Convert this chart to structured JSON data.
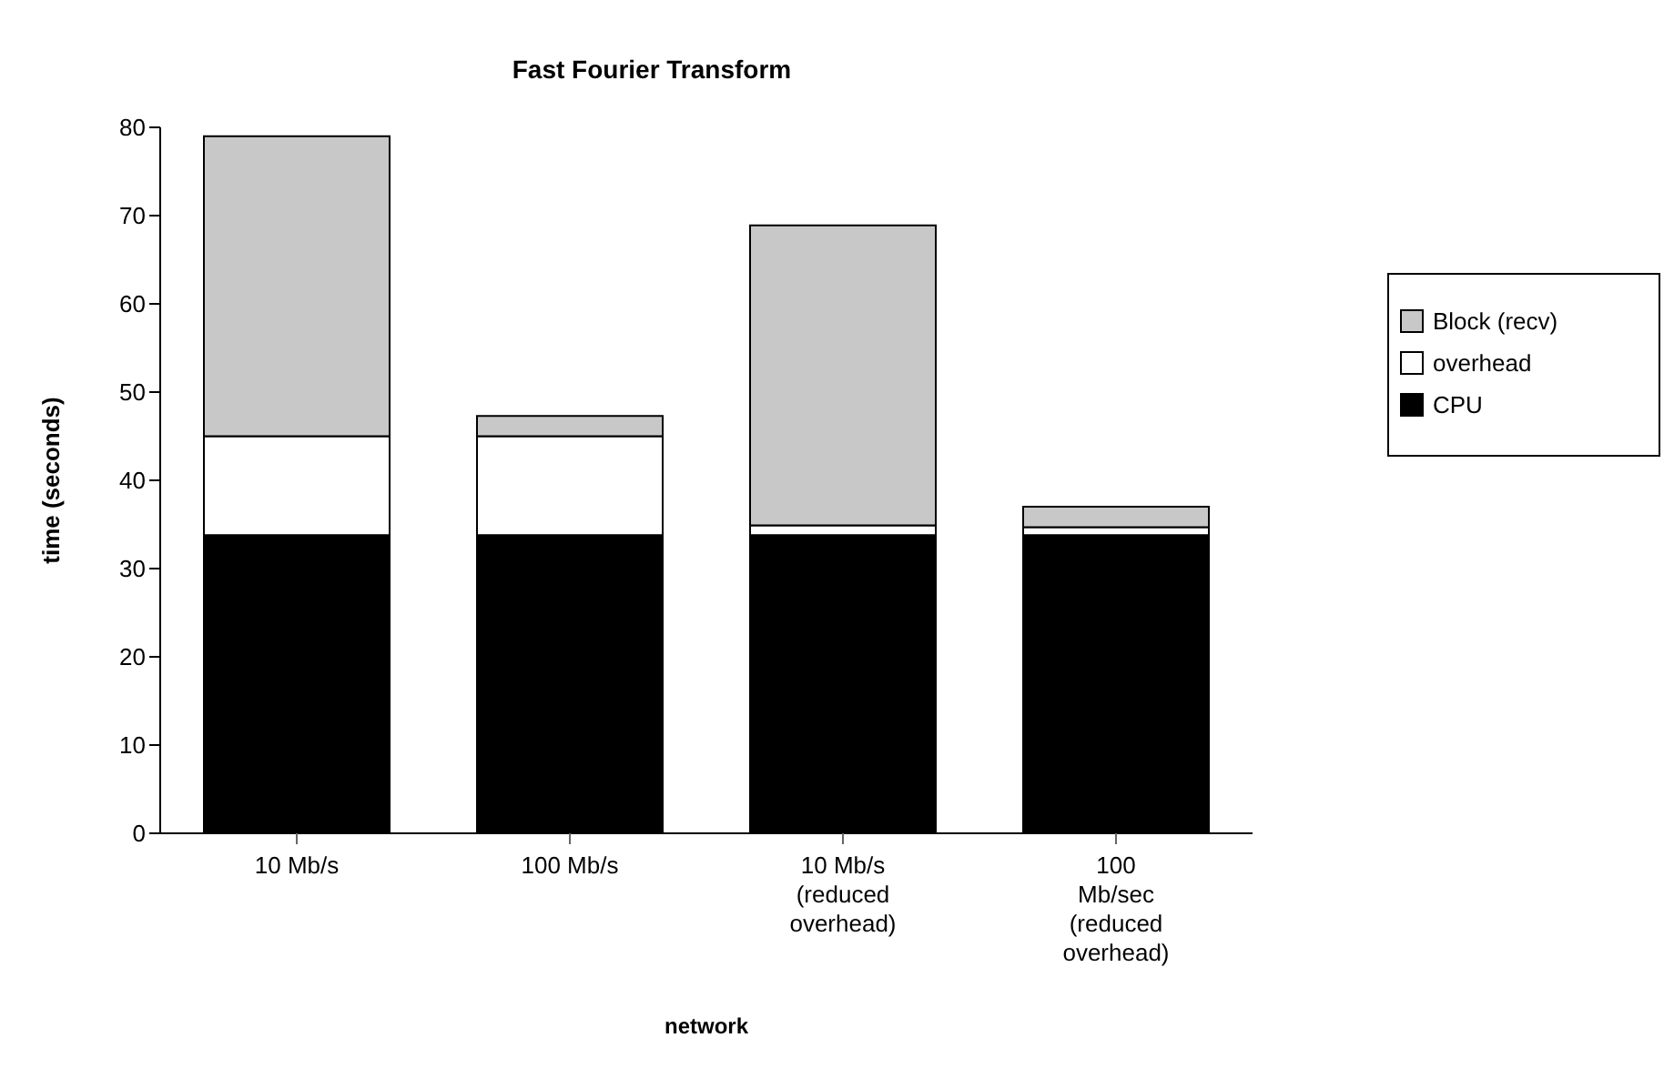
{
  "chart_data": {
    "type": "bar",
    "title": "Fast Fourier Transform",
    "xlabel": "network",
    "ylabel": "time (seconds)",
    "categories": [
      "10 Mb/s",
      "100 Mb/s",
      "10 Mb/s (reduced overhead)",
      "100 Mb/sec (reduced overhead)"
    ],
    "stacked": true,
    "series": [
      {
        "name": "CPU",
        "color": "#000000",
        "values": [
          33.8,
          33.8,
          33.8,
          33.8
        ]
      },
      {
        "name": "overhead",
        "color": "#ffffff",
        "values": [
          11.2,
          11.2,
          1.1,
          0.9
        ]
      },
      {
        "name": "Block (recv)",
        "color": "#c8c8c8",
        "values": [
          34,
          2.3,
          34,
          2.3
        ]
      }
    ],
    "ylim": [
      0,
      80
    ],
    "yticks": [
      0,
      10,
      20,
      30,
      40,
      50,
      60,
      70,
      80
    ],
    "legend": "right"
  }
}
